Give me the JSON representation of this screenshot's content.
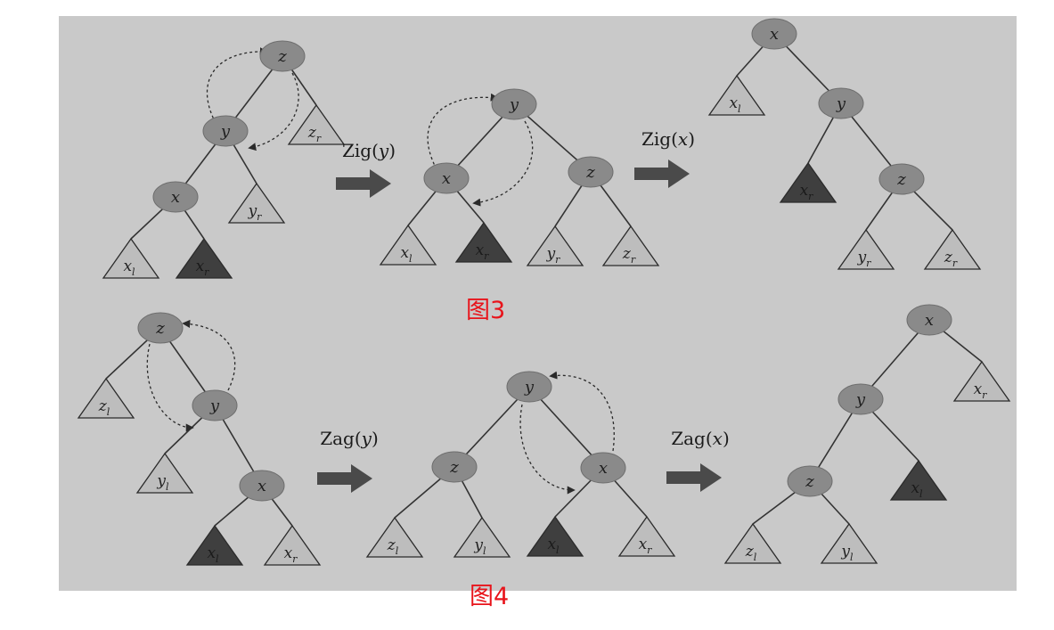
{
  "figures": [
    {
      "caption": "图3",
      "steps": [
        {
          "op": "Zig",
          "arg": "y"
        },
        {
          "op": "Zig",
          "arg": "x"
        }
      ],
      "trees": [
        {
          "nodes": [
            {
              "label": "z"
            },
            {
              "label": "y"
            },
            {
              "label": "x"
            }
          ],
          "subtrees": [
            {
              "label": "z",
              "sub": "r",
              "shade": "light"
            },
            {
              "label": "y",
              "sub": "r",
              "shade": "light"
            },
            {
              "label": "x",
              "sub": "l",
              "shade": "light"
            },
            {
              "label": "x",
              "sub": "r",
              "shade": "dark"
            }
          ]
        },
        {
          "nodes": [
            {
              "label": "y"
            },
            {
              "label": "x"
            },
            {
              "label": "z"
            }
          ],
          "subtrees": [
            {
              "label": "x",
              "sub": "l",
              "shade": "light"
            },
            {
              "label": "x",
              "sub": "r",
              "shade": "dark"
            },
            {
              "label": "y",
              "sub": "r",
              "shade": "light"
            },
            {
              "label": "z",
              "sub": "r",
              "shade": "light"
            }
          ]
        },
        {
          "nodes": [
            {
              "label": "x"
            },
            {
              "label": "y"
            },
            {
              "label": "z"
            }
          ],
          "subtrees": [
            {
              "label": "x",
              "sub": "l",
              "shade": "light"
            },
            {
              "label": "x",
              "sub": "r",
              "shade": "dark"
            },
            {
              "label": "y",
              "sub": "r",
              "shade": "light"
            },
            {
              "label": "z",
              "sub": "r",
              "shade": "light"
            }
          ]
        }
      ]
    },
    {
      "caption": "图4",
      "steps": [
        {
          "op": "Zag",
          "arg": "y"
        },
        {
          "op": "Zag",
          "arg": "x"
        }
      ],
      "trees": [
        {
          "nodes": [
            {
              "label": "z"
            },
            {
              "label": "y"
            },
            {
              "label": "x"
            }
          ],
          "subtrees": [
            {
              "label": "z",
              "sub": "l",
              "shade": "light"
            },
            {
              "label": "y",
              "sub": "l",
              "shade": "light"
            },
            {
              "label": "x",
              "sub": "l",
              "shade": "dark"
            },
            {
              "label": "x",
              "sub": "r",
              "shade": "light"
            }
          ]
        },
        {
          "nodes": [
            {
              "label": "y"
            },
            {
              "label": "z"
            },
            {
              "label": "x"
            }
          ],
          "subtrees": [
            {
              "label": "z",
              "sub": "l",
              "shade": "light"
            },
            {
              "label": "y",
              "sub": "l",
              "shade": "light"
            },
            {
              "label": "x",
              "sub": "l",
              "shade": "dark"
            },
            {
              "label": "x",
              "sub": "r",
              "shade": "light"
            }
          ]
        },
        {
          "nodes": [
            {
              "label": "x"
            },
            {
              "label": "y"
            },
            {
              "label": "z"
            }
          ],
          "subtrees": [
            {
              "label": "x",
              "sub": "r",
              "shade": "light"
            },
            {
              "label": "x",
              "sub": "l",
              "shade": "dark"
            },
            {
              "label": "z",
              "sub": "l",
              "shade": "light"
            },
            {
              "label": "y",
              "sub": "l",
              "shade": "light"
            }
          ]
        }
      ]
    }
  ],
  "colors": {
    "paper": "#c9c9c9",
    "node_fill": "#8a8a8a",
    "light_triangle": "#bdbdbd",
    "dark_triangle": "#3f3f3f",
    "edge": "#333333",
    "arrow": "#4a4a4a",
    "caption": "#e8141b"
  }
}
